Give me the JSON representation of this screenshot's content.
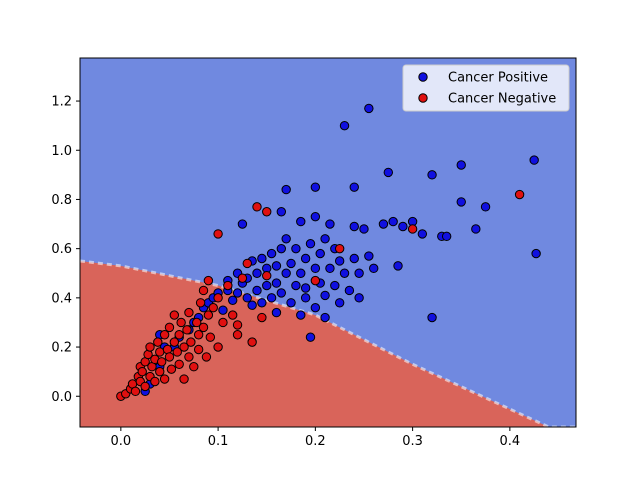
{
  "chart_data": {
    "type": "scatter",
    "xlim": [
      -0.042,
      0.468
    ],
    "ylim": [
      -0.125,
      1.375
    ],
    "x_ticks": [
      0.0,
      0.1,
      0.2,
      0.3,
      0.4
    ],
    "x_tick_labels": [
      "0.0",
      "0.1",
      "0.2",
      "0.3",
      "0.4"
    ],
    "y_ticks": [
      0.0,
      0.2,
      0.4,
      0.6,
      0.8,
      1.0,
      1.2
    ],
    "y_tick_labels": [
      "0.0",
      "0.2",
      "0.4",
      "0.6",
      "0.8",
      "1.0",
      "1.2"
    ],
    "grid": false,
    "legend_position": "top-right",
    "decision_regions": {
      "negative_color": "#d9645a",
      "positive_color": "#7089e0",
      "boundary": [
        [
          -0.042,
          0.55
        ],
        [
          0.0,
          0.53
        ],
        [
          0.1,
          0.45
        ],
        [
          0.2,
          0.33
        ],
        [
          0.3,
          0.13
        ],
        [
          0.44,
          -0.125
        ],
        [
          0.468,
          -0.125
        ]
      ]
    },
    "series": [
      {
        "name": "Cancer Positive",
        "color": "#1010e0",
        "points": [
          [
            0.025,
            0.02
          ],
          [
            0.03,
            0.05
          ],
          [
            0.04,
            0.12
          ],
          [
            0.04,
            0.25
          ],
          [
            0.045,
            0.2
          ],
          [
            0.055,
            0.2
          ],
          [
            0.06,
            0.24
          ],
          [
            0.07,
            0.27
          ],
          [
            0.075,
            0.3
          ],
          [
            0.08,
            0.32
          ],
          [
            0.085,
            0.36
          ],
          [
            0.09,
            0.38
          ],
          [
            0.095,
            0.4
          ],
          [
            0.1,
            0.42
          ],
          [
            0.105,
            0.35
          ],
          [
            0.11,
            0.43
          ],
          [
            0.11,
            0.47
          ],
          [
            0.115,
            0.39
          ],
          [
            0.12,
            0.42
          ],
          [
            0.12,
            0.5
          ],
          [
            0.125,
            0.46
          ],
          [
            0.125,
            0.7
          ],
          [
            0.13,
            0.4
          ],
          [
            0.13,
            0.48
          ],
          [
            0.135,
            0.37
          ],
          [
            0.135,
            0.55
          ],
          [
            0.14,
            0.43
          ],
          [
            0.14,
            0.5
          ],
          [
            0.145,
            0.56
          ],
          [
            0.145,
            0.38
          ],
          [
            0.15,
            0.45
          ],
          [
            0.15,
            0.52
          ],
          [
            0.155,
            0.4
          ],
          [
            0.155,
            0.58
          ],
          [
            0.16,
            0.46
          ],
          [
            0.16,
            0.53
          ],
          [
            0.16,
            0.34
          ],
          [
            0.165,
            0.42
          ],
          [
            0.165,
            0.6
          ],
          [
            0.165,
            0.75
          ],
          [
            0.17,
            0.5
          ],
          [
            0.17,
            0.64
          ],
          [
            0.17,
            0.84
          ],
          [
            0.175,
            0.38
          ],
          [
            0.175,
            0.54
          ],
          [
            0.18,
            0.45
          ],
          [
            0.18,
            0.6
          ],
          [
            0.185,
            0.33
          ],
          [
            0.185,
            0.5
          ],
          [
            0.185,
            0.71
          ],
          [
            0.19,
            0.44
          ],
          [
            0.19,
            0.56
          ],
          [
            0.19,
            0.4
          ],
          [
            0.195,
            0.62
          ],
          [
            0.195,
            0.24
          ],
          [
            0.2,
            0.52
          ],
          [
            0.2,
            0.36
          ],
          [
            0.2,
            0.85
          ],
          [
            0.2,
            0.73
          ],
          [
            0.205,
            0.46
          ],
          [
            0.205,
            0.58
          ],
          [
            0.21,
            0.41
          ],
          [
            0.21,
            0.64
          ],
          [
            0.21,
            0.32
          ],
          [
            0.215,
            0.52
          ],
          [
            0.215,
            0.7
          ],
          [
            0.22,
            0.45
          ],
          [
            0.22,
            0.6
          ],
          [
            0.225,
            0.38
          ],
          [
            0.225,
            0.55
          ],
          [
            0.23,
            0.5
          ],
          [
            0.23,
            1.1
          ],
          [
            0.235,
            0.43
          ],
          [
            0.24,
            0.56
          ],
          [
            0.24,
            0.69
          ],
          [
            0.24,
            0.85
          ],
          [
            0.245,
            0.4
          ],
          [
            0.245,
            0.5
          ],
          [
            0.25,
            0.68
          ],
          [
            0.255,
            0.57
          ],
          [
            0.255,
            1.17
          ],
          [
            0.26,
            0.52
          ],
          [
            0.27,
            0.7
          ],
          [
            0.275,
            0.91
          ],
          [
            0.28,
            0.71
          ],
          [
            0.285,
            0.53
          ],
          [
            0.29,
            0.69
          ],
          [
            0.3,
            0.71
          ],
          [
            0.31,
            0.66
          ],
          [
            0.32,
            0.9
          ],
          [
            0.32,
            0.32
          ],
          [
            0.33,
            0.65
          ],
          [
            0.335,
            0.65
          ],
          [
            0.35,
            0.79
          ],
          [
            0.35,
            0.94
          ],
          [
            0.365,
            0.68
          ],
          [
            0.375,
            0.77
          ],
          [
            0.425,
            0.96
          ],
          [
            0.427,
            0.58
          ]
        ]
      },
      {
        "name": "Cancer Negative",
        "color": "#e01010",
        "points": [
          [
            0.0,
            0.0
          ],
          [
            0.005,
            0.01
          ],
          [
            0.01,
            0.03
          ],
          [
            0.012,
            0.05
          ],
          [
            0.015,
            0.02
          ],
          [
            0.018,
            0.08
          ],
          [
            0.02,
            0.06
          ],
          [
            0.02,
            0.12
          ],
          [
            0.022,
            0.1
          ],
          [
            0.025,
            0.14
          ],
          [
            0.025,
            0.04
          ],
          [
            0.028,
            0.17
          ],
          [
            0.03,
            0.08
          ],
          [
            0.03,
            0.2
          ],
          [
            0.032,
            0.12
          ],
          [
            0.035,
            0.15
          ],
          [
            0.035,
            0.06
          ],
          [
            0.038,
            0.22
          ],
          [
            0.04,
            0.18
          ],
          [
            0.04,
            0.1
          ],
          [
            0.042,
            0.14
          ],
          [
            0.045,
            0.25
          ],
          [
            0.045,
            0.07
          ],
          [
            0.048,
            0.19
          ],
          [
            0.05,
            0.16
          ],
          [
            0.05,
            0.28
          ],
          [
            0.052,
            0.11
          ],
          [
            0.055,
            0.22
          ],
          [
            0.055,
            0.33
          ],
          [
            0.058,
            0.18
          ],
          [
            0.06,
            0.25
          ],
          [
            0.06,
            0.13
          ],
          [
            0.062,
            0.3
          ],
          [
            0.065,
            0.2
          ],
          [
            0.065,
            0.07
          ],
          [
            0.068,
            0.27
          ],
          [
            0.07,
            0.16
          ],
          [
            0.07,
            0.34
          ],
          [
            0.072,
            0.22
          ],
          [
            0.075,
            0.12
          ],
          [
            0.078,
            0.3
          ],
          [
            0.08,
            0.25
          ],
          [
            0.08,
            0.19
          ],
          [
            0.082,
            0.38
          ],
          [
            0.085,
            0.43
          ],
          [
            0.085,
            0.28
          ],
          [
            0.088,
            0.16
          ],
          [
            0.09,
            0.33
          ],
          [
            0.09,
            0.47
          ],
          [
            0.092,
            0.24
          ],
          [
            0.095,
            0.36
          ],
          [
            0.1,
            0.4
          ],
          [
            0.1,
            0.2
          ],
          [
            0.1,
            0.66
          ],
          [
            0.105,
            0.3
          ],
          [
            0.11,
            0.45
          ],
          [
            0.115,
            0.33
          ],
          [
            0.12,
            0.25
          ],
          [
            0.12,
            0.29
          ],
          [
            0.125,
            0.48
          ],
          [
            0.13,
            0.54
          ],
          [
            0.135,
            0.22
          ],
          [
            0.14,
            0.77
          ],
          [
            0.145,
            0.32
          ],
          [
            0.15,
            0.49
          ],
          [
            0.15,
            0.75
          ],
          [
            0.2,
            0.47
          ],
          [
            0.225,
            0.6
          ],
          [
            0.3,
            0.68
          ],
          [
            0.41,
            0.82
          ]
        ]
      }
    ]
  }
}
